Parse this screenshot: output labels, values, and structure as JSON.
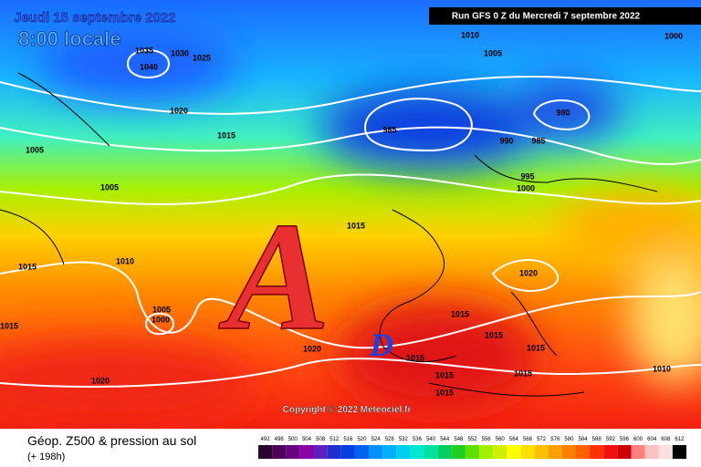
{
  "header": {
    "date": "Jeudi 15 septembre 2022",
    "time": "8:00 locale",
    "run": "Run GFS 0 Z du Mercredi 7 septembre 2022"
  },
  "map": {
    "high_symbol": "A",
    "low_symbol": "D",
    "copyright": "Copyright © 2022 Meteociel.fr",
    "isobar_labels": [
      "1035",
      "1040",
      "1030",
      "1025",
      "1010",
      "1005",
      "1000",
      "1020",
      "1015",
      "1005",
      "985",
      "990",
      "985",
      "980",
      "995",
      "1000",
      "1005",
      "1015",
      "1015",
      "1010",
      "1020",
      "1005",
      "1000",
      "1015",
      "1015",
      "1015",
      "1015",
      "1020",
      "1015",
      "1015",
      "1015",
      "1015",
      "1010",
      "1020"
    ]
  },
  "footer": {
    "title": "Géop. Z500 & pression au sol",
    "lead": "(+ 198h)"
  },
  "legend": {
    "values": [
      492,
      496,
      500,
      504,
      508,
      512,
      516,
      520,
      524,
      528,
      532,
      536,
      540,
      544,
      548,
      552,
      556,
      560,
      564,
      568,
      572,
      576,
      580,
      584,
      588,
      592,
      596,
      600,
      604,
      608,
      612
    ],
    "colors": [
      "#2a0030",
      "#4b0055",
      "#6a0080",
      "#8a00a8",
      "#6020c0",
      "#2030d0",
      "#0040e0",
      "#0060f0",
      "#0090ff",
      "#00b0ff",
      "#00d0f0",
      "#00e8d0",
      "#00e0a0",
      "#00d060",
      "#20d020",
      "#60e000",
      "#a0f000",
      "#d0f000",
      "#ffff00",
      "#ffe000",
      "#ffc000",
      "#ffa000",
      "#ff8000",
      "#ff6000",
      "#ff3000",
      "#f01010",
      "#d00000",
      "#ff8080",
      "#ffc0c0",
      "#ffe0e0",
      "#000000"
    ]
  }
}
